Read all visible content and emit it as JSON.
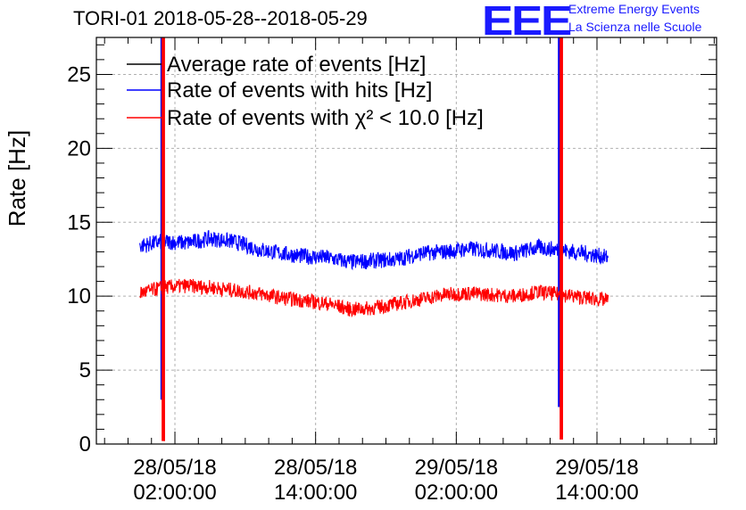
{
  "header": {
    "title": "TORI-01 2018-05-28--2018-05-29",
    "logo_text": "EEE",
    "logo_line1": "Extreme Energy Events",
    "logo_line2": "La Scienza nelle Scuole",
    "logo_color": "#1a1aff"
  },
  "chart_data": {
    "type": "line",
    "title": "TORI-01 2018-05-28--2018-05-29",
    "xlabel": "",
    "ylabel": "Rate [Hz]",
    "x_unit": "hours since 2018-05-28 00:00",
    "xlim": [
      -4.7,
      48.2
    ],
    "ylim": [
      0,
      27.5
    ],
    "yticks": [
      0,
      5,
      10,
      15,
      20,
      25
    ],
    "xticks": [
      {
        "x": 2,
        "label1": "28/05/18",
        "label2": "02:00:00"
      },
      {
        "x": 14,
        "label1": "28/05/18",
        "label2": "14:00:00"
      },
      {
        "x": 26,
        "label1": "29/05/18",
        "label2": "02:00:00"
      },
      {
        "x": 38,
        "label1": "29/05/18",
        "label2": "14:00:00"
      }
    ],
    "grid": true,
    "legend_position": "top-left",
    "series": [
      {
        "name": "Average rate of events [Hz]",
        "color": "#000000",
        "x": [
          -1,
          1,
          3,
          5,
          7,
          9,
          11,
          13,
          15,
          17,
          19,
          21,
          23,
          25,
          27,
          29,
          31,
          33,
          35,
          37,
          39
        ],
        "y": [
          13.4,
          13.7,
          13.6,
          13.9,
          13.7,
          13.2,
          12.9,
          12.7,
          12.6,
          12.3,
          12.4,
          12.5,
          12.9,
          13.0,
          13.2,
          13.1,
          12.9,
          13.3,
          13.1,
          12.9,
          12.6
        ]
      },
      {
        "name": "Rate of events with hits [Hz]",
        "color": "#0000ff",
        "x": [
          -1,
          1,
          3,
          5,
          7,
          9,
          11,
          13,
          15,
          17,
          19,
          21,
          23,
          25,
          27,
          29,
          31,
          33,
          35,
          37,
          39
        ],
        "y": [
          13.4,
          13.7,
          13.6,
          13.9,
          13.7,
          13.2,
          12.9,
          12.7,
          12.6,
          12.3,
          12.4,
          12.5,
          12.9,
          13.0,
          13.2,
          13.1,
          12.9,
          13.3,
          13.1,
          12.9,
          12.6
        ],
        "spikes": [
          {
            "x": 0.85,
            "y_max": 27.5,
            "y_min": 3.0
          },
          {
            "x": 34.75,
            "y_max": 27.5,
            "y_min": 2.5
          }
        ]
      },
      {
        "name": "Rate of events with χ² < 10.0 [Hz]",
        "color": "#ff0000",
        "x": [
          -1,
          1,
          3,
          5,
          7,
          9,
          11,
          13,
          15,
          17,
          19,
          21,
          23,
          25,
          27,
          29,
          31,
          33,
          35,
          37,
          39
        ],
        "y": [
          10.2,
          10.6,
          10.7,
          10.6,
          10.4,
          10.2,
          9.9,
          9.7,
          9.5,
          9.1,
          9.2,
          9.5,
          9.8,
          10.1,
          10.2,
          10.1,
          10.0,
          10.3,
          10.1,
          9.9,
          9.7
        ],
        "spikes": [
          {
            "x": 0.95,
            "y_max": 27.5,
            "y_min": 0.2
          },
          {
            "x": 34.9,
            "y_max": 27.5,
            "y_min": 0.3
          }
        ]
      }
    ]
  }
}
